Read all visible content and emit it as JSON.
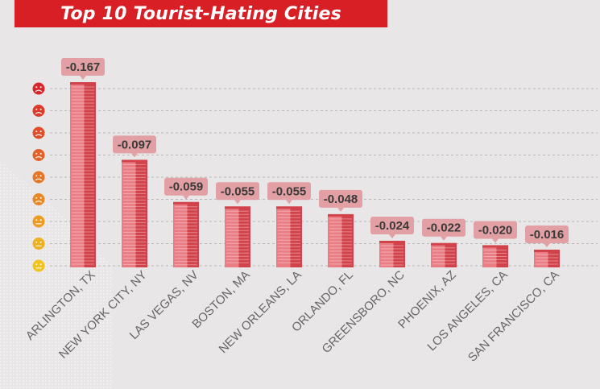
{
  "colors": {
    "title_bg": "#d81f26",
    "building_dark": "#d2424a",
    "building_light": "#ea7d84",
    "label_bg": "#e3a0a4",
    "label_text": "#3a3a3a",
    "grid": "#b9b9b9",
    "face_red": "#d9262d",
    "face_yellow": "#f3c31d"
  },
  "scale_icons": [
    "sad-face-icon",
    "sad-face-icon",
    "sad-face-icon",
    "sad-face-icon",
    "sad-face-icon",
    "sad-face-icon",
    "neutral-face-icon",
    "neutral-face-icon",
    "neutral-face-icon"
  ],
  "chart_data": {
    "type": "bar",
    "title": "Top 10 Tourist-Hating Cities",
    "categories": [
      "ARLINGTON, TX",
      "NEW YORK CITY, NY",
      "LAS VEGAS, NV",
      "BOSTON, MA",
      "NEW ORLEANS, LA",
      "ORLANDO, FL",
      "GREENSBORO, NC",
      "PHOENIX, AZ",
      "LOS ANGELES, CA",
      "SAN FRANCISCO, CA"
    ],
    "values": [
      -0.167,
      -0.097,
      -0.059,
      -0.055,
      -0.055,
      -0.048,
      -0.024,
      -0.022,
      -0.02,
      -0.016
    ],
    "value_labels": [
      "-0.167",
      "-0.097",
      "-0.059",
      "-0.055",
      "-0.055",
      "-0.048",
      "-0.024",
      "-0.022",
      "-0.020",
      "-0.016"
    ],
    "grid": true
  }
}
